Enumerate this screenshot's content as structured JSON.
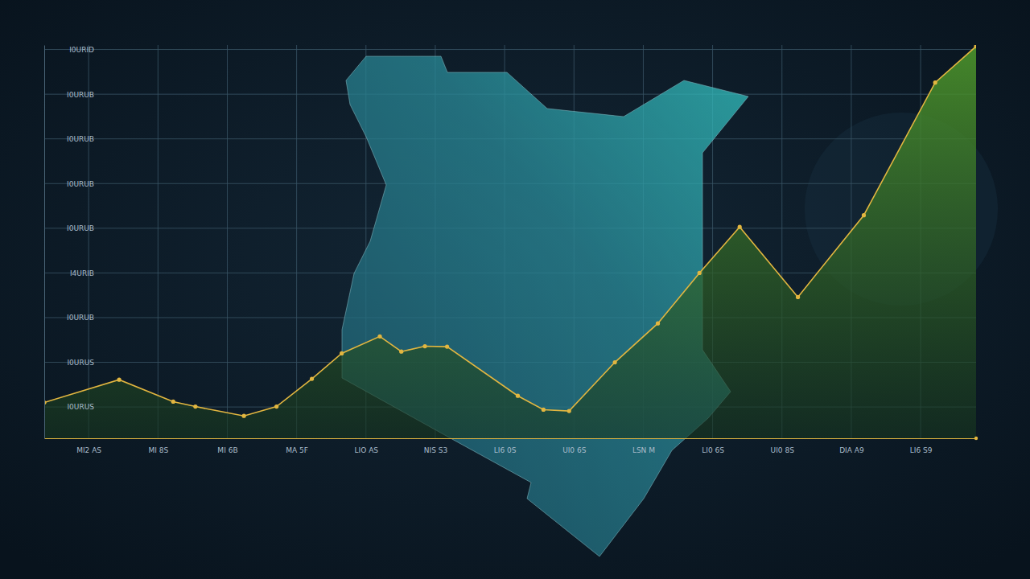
{
  "chart_data": {
    "type": "area",
    "color": "#e2b640",
    "marker": "circle",
    "grid": true,
    "x": [
      -6.4,
      4.4,
      12.2,
      15.4,
      22.4,
      27.1,
      32.2,
      36.5,
      42.0,
      45.1,
      48.5,
      51.7,
      61.9,
      65.6,
      69.3,
      75.9,
      82.1,
      88.1,
      93.9,
      102.3,
      111.8,
      122.1,
      128
    ],
    "values": [
      11.0,
      16.1,
      11.2,
      10.1,
      8.0,
      10.1,
      16.3,
      22.0,
      25.8,
      22.4,
      23.6,
      23.5,
      12.5,
      9.4,
      9.1,
      20.0,
      28.7,
      40.0,
      50.3,
      34.6,
      52.9,
      82.6,
      90.7
    ],
    "xlim": [
      -6.4,
      128
    ],
    "ylim": [
      3,
      91
    ],
    "xticks": [
      {
        "value": 0,
        "label": "MI2 AS"
      },
      {
        "value": 10,
        "label": "MI 8S"
      },
      {
        "value": 20,
        "label": "MI 6B"
      },
      {
        "value": 30,
        "label": "MA 5F"
      },
      {
        "value": 40,
        "label": "LIO AS"
      },
      {
        "value": 50,
        "label": "NIS S3"
      },
      {
        "value": 60,
        "label": "LI6 0S"
      },
      {
        "value": 70,
        "label": "UI0 6S"
      },
      {
        "value": 80,
        "label": "LSN M"
      },
      {
        "value": 90,
        "label": "LI0 6S"
      },
      {
        "value": 100,
        "label": "UI0 8S"
      },
      {
        "value": 110,
        "label": "DIA A9"
      },
      {
        "value": 120,
        "label": "LI6 S9"
      }
    ],
    "yticks": [
      {
        "value": 10,
        "label": "I0URUS"
      },
      {
        "value": 20,
        "label": "I0URUS"
      },
      {
        "value": 30,
        "label": "I0URUB"
      },
      {
        "value": 40,
        "label": "I4URIB"
      },
      {
        "value": 50,
        "label": "I0URUB"
      },
      {
        "value": 60,
        "label": "I0URUB"
      },
      {
        "value": 70,
        "label": "I0URUB"
      },
      {
        "value": 80,
        "label": "I0URUB"
      },
      {
        "value": 90,
        "label": "I0URID"
      }
    ]
  }
}
